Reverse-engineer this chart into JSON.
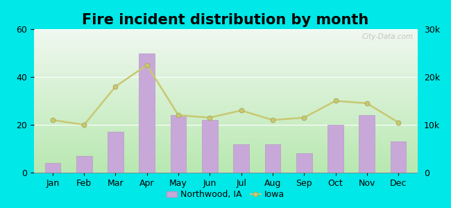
{
  "title": "Fire incident distribution by month",
  "months": [
    "Jan",
    "Feb",
    "Mar",
    "Apr",
    "May",
    "Jun",
    "Jul",
    "Aug",
    "Sep",
    "Oct",
    "Nov",
    "Dec"
  ],
  "northwood_values": [
    4,
    7,
    17,
    50,
    24,
    22,
    12,
    12,
    8,
    20,
    24,
    13
  ],
  "iowa_values": [
    11000,
    10000,
    18000,
    22500,
    12000,
    11500,
    13000,
    11000,
    11500,
    15000,
    14500,
    10500
  ],
  "bar_color": "#c8a8d8",
  "bar_edge_color": "#b898c8",
  "line_color": "#c8c870",
  "line_marker": "o",
  "line_marker_color": "#c8c870",
  "bg_bottom_color": "#b8e8b0",
  "bg_top_color": "#f0f8f0",
  "outer_background": "#00e8e8",
  "left_ylim": [
    0,
    60
  ],
  "left_yticks": [
    0,
    20,
    40,
    60
  ],
  "right_ylim": [
    0,
    30000
  ],
  "right_yticks": [
    0,
    10000,
    20000,
    30000
  ],
  "title_fontsize": 15,
  "tick_fontsize": 9,
  "legend_fontsize": 9,
  "watermark": "City-Data.com"
}
